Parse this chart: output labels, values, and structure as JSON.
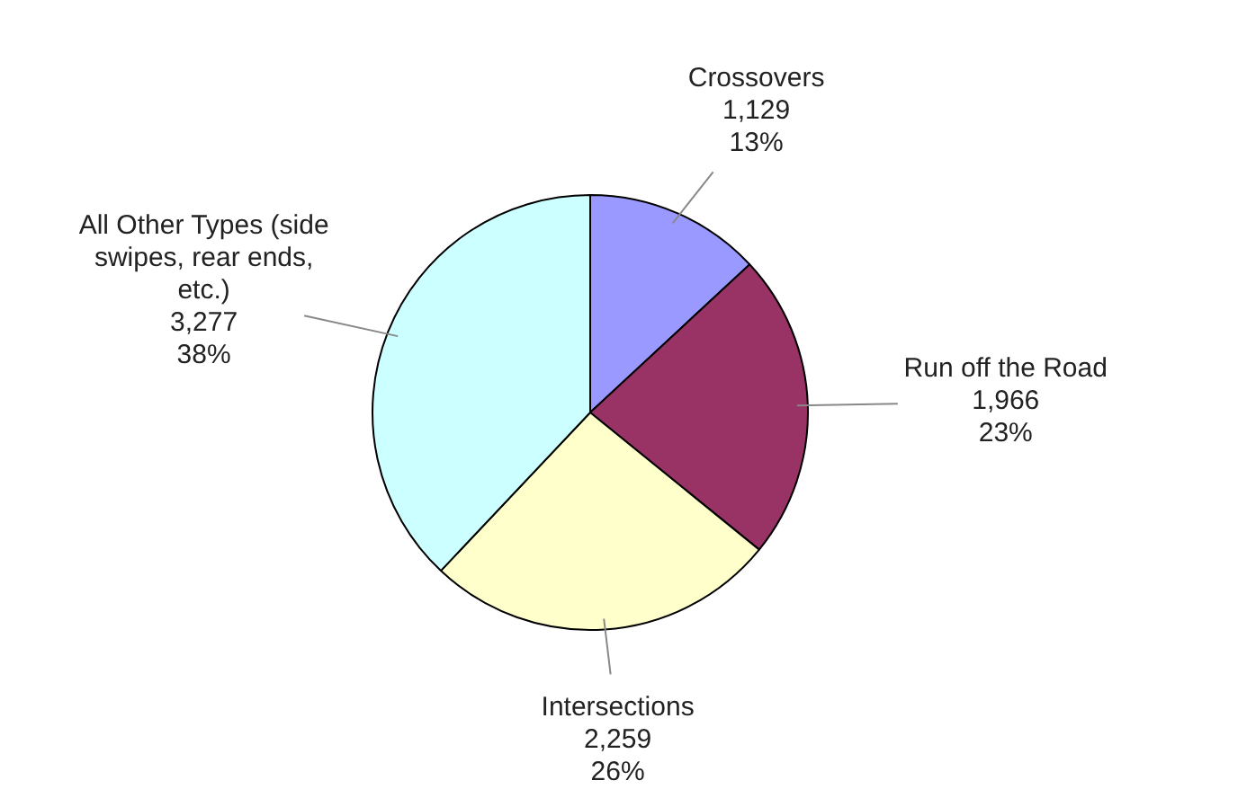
{
  "chart_data": {
    "type": "pie",
    "categories": [
      "Crossovers",
      "Run off the Road",
      "Intersections",
      "All Other Types (side swipes, rear ends, etc.)"
    ],
    "values": [
      1129,
      1966,
      2259,
      3277
    ],
    "value_labels": [
      "1,129\n13%",
      "1,966\n23%",
      "2,259\n26%",
      "3,277\n38%"
    ],
    "colors": [
      "#9999ff",
      "#993366",
      "#ffffcc",
      "#ccffff"
    ],
    "legend": false
  }
}
